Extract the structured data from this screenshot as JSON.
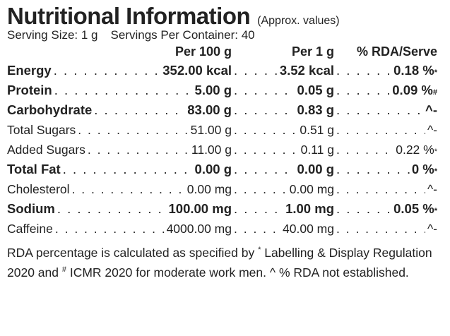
{
  "header": {
    "title": "Nutritional Information",
    "note": "(Approx. values)"
  },
  "serving": {
    "size": "Serving Size: 1 g",
    "per_container": "Servings Per Container: 40"
  },
  "table": {
    "columns": [
      "Per 100 g",
      "Per 1 g",
      "% RDA/Serve"
    ],
    "rows": [
      {
        "name": "Energy",
        "per100": "352.00 kcal",
        "per1": "3.52 kcal",
        "rda": "0.18 %",
        "rda_sup": "*",
        "bold": true
      },
      {
        "name": "Protein",
        "per100": "5.00 g",
        "per1": "0.05 g",
        "rda": "0.09 %",
        "rda_sup": "#",
        "bold": true
      },
      {
        "name": "Carbohydrate",
        "per100": "83.00 g",
        "per1": "0.83 g",
        "rda": "^-",
        "bold": true
      },
      {
        "name": "Total Sugars",
        "per100": "51.00 g",
        "per1": "0.51 g",
        "rda": "^-",
        "bold": false
      },
      {
        "name": "Added Sugars",
        "per100": "11.00 g",
        "per1": "0.11 g",
        "rda": "0.22 %",
        "rda_sup": "*",
        "bold": false
      },
      {
        "name": "Total Fat",
        "per100": "0.00 g",
        "per1": "0.00 g",
        "rda": "0 %",
        "rda_sup": "*",
        "bold": true
      },
      {
        "name": "Cholesterol",
        "per100": "0.00 mg",
        "per1": "0.00 mg",
        "rda": "^-",
        "bold": false
      },
      {
        "name": "Sodium",
        "per100": "100.00 mg",
        "per1": "1.00 mg",
        "rda": "0.05 %",
        "rda_sup": "*",
        "bold": true
      },
      {
        "name": "Caffeine",
        "per100": "4000.00 mg",
        "per1": "40.00 mg",
        "rda": "^-",
        "bold": false
      }
    ]
  },
  "footnote": [
    "RDA percentage is calculated as specified by ",
    "*",
    " Labelling & Display Regulation 2020 and ",
    "#",
    " ICMR 2020 for moderate work men. ^ % RDA not established."
  ]
}
